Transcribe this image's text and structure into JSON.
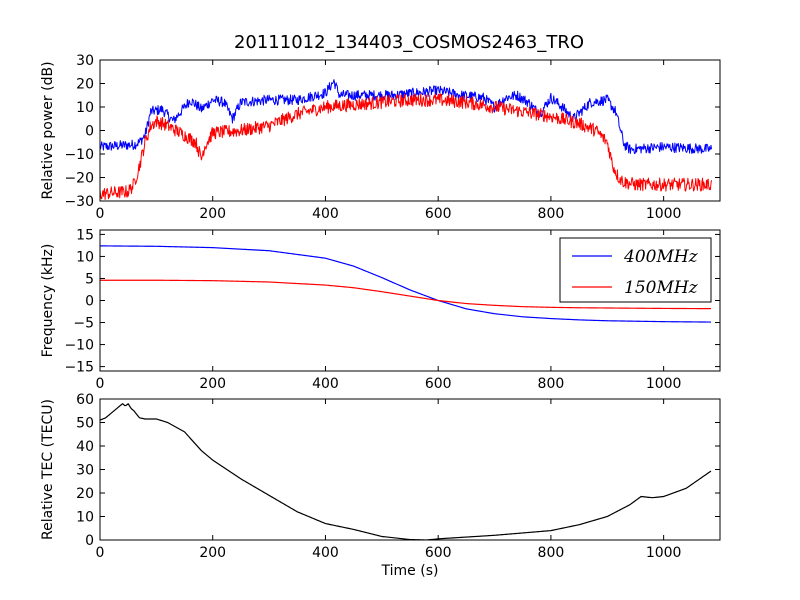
{
  "chart_data": [
    {
      "type": "line",
      "title": "20111012_134403_COSMOS2463_TRO",
      "xlabel": "",
      "ylabel": "Relative power (dB)",
      "xlim": [
        0,
        1100
      ],
      "ylim": [
        -30,
        30
      ],
      "x_ticks": [
        "0",
        "200",
        "400",
        "600",
        "800",
        "1000"
      ],
      "y_ticks": [
        "30",
        "20",
        "10",
        "0",
        "−10",
        "−20",
        "−30"
      ],
      "grid": false,
      "series": [
        {
          "color": "#0000ff",
          "x": [
            0,
            60,
            70,
            80,
            90,
            110,
            130,
            160,
            180,
            200,
            220,
            235,
            250,
            300,
            350,
            400,
            415,
            420,
            425,
            440,
            480,
            520,
            560,
            600,
            640,
            680,
            700,
            720,
            740,
            760,
            780,
            800,
            820,
            840,
            870,
            900,
            915,
            930,
            940,
            1000,
            1085
          ],
          "y": [
            -7,
            -6,
            -5,
            -2,
            8,
            9,
            4,
            13,
            9,
            13,
            12,
            5,
            12,
            13,
            13,
            16,
            21,
            18,
            15,
            15,
            15,
            15,
            16,
            17,
            15,
            14,
            10,
            14,
            15,
            12,
            7,
            14,
            10,
            5,
            12,
            13,
            8,
            -6,
            -8,
            -7,
            -8
          ],
          "noise": 2.2
        },
        {
          "color": "#ff0000",
          "x": [
            0,
            50,
            60,
            70,
            80,
            90,
            100,
            120,
            150,
            170,
            180,
            185,
            200,
            250,
            300,
            350,
            400,
            450,
            500,
            550,
            600,
            650,
            700,
            750,
            800,
            850,
            880,
            900,
            910,
            920,
            930,
            950,
            1000,
            1085
          ],
          "y": [
            -27,
            -26,
            -23,
            -15,
            -5,
            2,
            4,
            2,
            -2,
            -5,
            -12,
            -7,
            -1,
            0,
            2,
            7,
            10,
            11,
            12,
            13,
            13,
            12,
            10,
            8,
            6,
            3,
            0,
            -5,
            -15,
            -20,
            -22,
            -23,
            -23,
            -23
          ],
          "noise": 2.8
        }
      ]
    },
    {
      "type": "line",
      "xlabel": "",
      "ylabel": "Frequency (kHz)",
      "xlim": [
        0,
        1100
      ],
      "ylim": [
        -16,
        16
      ],
      "x_ticks": [
        "0",
        "200",
        "400",
        "600",
        "800",
        "1000"
      ],
      "y_ticks": [
        "15",
        "10",
        "5",
        "0",
        "−5",
        "−10",
        "−15"
      ],
      "legend_position": "top-right",
      "series": [
        {
          "name": "400MHz",
          "color": "#0000ff",
          "x": [
            0,
            100,
            200,
            300,
            400,
            450,
            500,
            550,
            600,
            650,
            700,
            750,
            800,
            850,
            900,
            950,
            1000,
            1085
          ],
          "y": [
            12.4,
            12.3,
            12.0,
            11.3,
            9.6,
            7.8,
            5.2,
            2.4,
            0.0,
            -1.9,
            -3.0,
            -3.7,
            -4.1,
            -4.4,
            -4.6,
            -4.7,
            -4.8,
            -4.9
          ]
        },
        {
          "name": "150MHz",
          "color": "#ff0000",
          "x": [
            0,
            100,
            200,
            300,
            400,
            450,
            500,
            550,
            600,
            650,
            700,
            750,
            800,
            850,
            900,
            950,
            1000,
            1085
          ],
          "y": [
            4.6,
            4.6,
            4.5,
            4.2,
            3.5,
            2.9,
            2.0,
            1.0,
            0.0,
            -0.7,
            -1.1,
            -1.4,
            -1.55,
            -1.65,
            -1.7,
            -1.75,
            -1.8,
            -1.85
          ]
        }
      ]
    },
    {
      "type": "line",
      "xlabel": "Time (s)",
      "ylabel": "Relative TEC (TECU)",
      "xlim": [
        0,
        1100
      ],
      "ylim": [
        0,
        60
      ],
      "x_ticks": [
        "0",
        "200",
        "400",
        "600",
        "800",
        "1000"
      ],
      "y_ticks": [
        "60",
        "50",
        "40",
        "30",
        "20",
        "10",
        "0"
      ],
      "series": [
        {
          "color": "#000000",
          "x": [
            0,
            10,
            20,
            30,
            40,
            45,
            50,
            55,
            60,
            70,
            80,
            100,
            120,
            150,
            180,
            200,
            250,
            300,
            350,
            400,
            420,
            450,
            500,
            550,
            580,
            600,
            700,
            800,
            850,
            900,
            940,
            960,
            980,
            1000,
            1040,
            1085
          ],
          "y": [
            51,
            52,
            54,
            56,
            58,
            57,
            58,
            56,
            55,
            52,
            51.5,
            51.5,
            50,
            46,
            38,
            34,
            26,
            19,
            12,
            7,
            6,
            4.5,
            1.5,
            0.2,
            0,
            0.5,
            2,
            4,
            6.5,
            10,
            15,
            18.5,
            18,
            18.5,
            22,
            29.5
          ]
        }
      ]
    }
  ]
}
